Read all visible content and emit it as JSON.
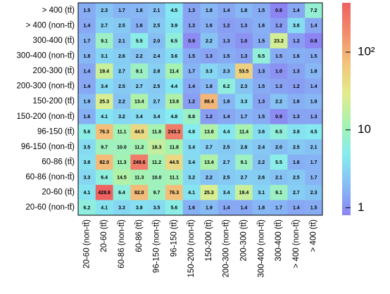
{
  "chart_data": {
    "type": "heatmap",
    "categories": [
      "20-60 (non-tt̄)",
      "20-60 (tt̄)",
      "60-86 (non-tt̄)",
      "60-86 (tt̄)",
      "96-150 (non-tt̄)",
      "96-150 (tt̄)",
      "150-200 (non-tt̄)",
      "150-200 (tt̄)",
      "200-300 (non-tt̄)",
      "200-300 (tt̄)",
      "300-400 (non-tt̄)",
      "300-400 (tt̄)",
      "> 400 (non-tt̄)",
      "> 400 (tt̄)"
    ],
    "y_categories": [
      "> 400 (tt̄)",
      "> 400 (non-tt̄)",
      "300-400 (tt̄)",
      "300-400 (non-tt̄)",
      "200-300 (tt̄)",
      "200-300 (non-tt̄)",
      "150-200 (tt̄)",
      "150-200 (non-tt̄)",
      "96-150 (tt̄)",
      "96-150 (non-tt̄)",
      "60-86 (tt̄)",
      "60-86 (non-tt̄)",
      "20-60 (tt̄)",
      "20-60 (non-tt̄)"
    ],
    "values": [
      [
        1.5,
        2.3,
        1.7,
        1.8,
        2.1,
        4.5,
        1.3,
        1.8,
        1.4,
        1.8,
        1.5,
        0.8,
        1.4,
        7.2
      ],
      [
        1.4,
        2.7,
        2.5,
        1.6,
        2.5,
        3.9,
        1.3,
        1.6,
        1.2,
        1.3,
        1.6,
        1.2,
        3.6,
        1.4
      ],
      [
        1.7,
        9.1,
        2.1,
        5.5,
        2.0,
        6.5,
        0.9,
        2.2,
        1.3,
        1.0,
        1.5,
        23.2,
        1.2,
        0.8
      ],
      [
        1.8,
        3.1,
        2.6,
        2.2,
        2.4,
        3.6,
        1.5,
        1.3,
        1.5,
        1.3,
        6.5,
        1.5,
        1.6,
        1.5
      ],
      [
        1.4,
        19.4,
        2.7,
        9.1,
        2.8,
        11.4,
        1.7,
        3.3,
        2.3,
        53.5,
        1.3,
        1.0,
        1.3,
        1.8
      ],
      [
        1.4,
        3.4,
        2.5,
        2.7,
        2.5,
        4.4,
        1.4,
        1.8,
        6.2,
        2.3,
        1.5,
        1.3,
        1.2,
        1.4
      ],
      [
        1.9,
        25.3,
        2.2,
        13.4,
        2.7,
        13.8,
        1.2,
        88.4,
        1.8,
        3.3,
        1.3,
        2.2,
        1.6,
        1.8
      ],
      [
        1.6,
        4.1,
        3.2,
        3.4,
        3.4,
        4.8,
        8.8,
        1.2,
        1.4,
        1.7,
        1.5,
        0.9,
        1.3,
        1.3
      ],
      [
        5.6,
        76.3,
        11.1,
        44.5,
        11.8,
        243.3,
        4.8,
        13.8,
        4.4,
        11.4,
        3.6,
        6.5,
        3.9,
        4.5
      ],
      [
        3.5,
        9.7,
        10.0,
        11.2,
        18.3,
        11.8,
        3.4,
        2.7,
        2.5,
        2.8,
        2.4,
        2.0,
        2.5,
        2.1
      ],
      [
        3.8,
        82.0,
        11.3,
        249.6,
        11.2,
        44.5,
        3.4,
        13.4,
        2.7,
        9.1,
        2.2,
        5.5,
        1.6,
        1.7
      ],
      [
        3.3,
        6.4,
        14.5,
        11.3,
        10.0,
        11.1,
        3.2,
        2.2,
        2.5,
        2.7,
        2.6,
        2.1,
        2.5,
        1.7
      ],
      [
        4.1,
        428.8,
        6.4,
        82.0,
        9.7,
        76.3,
        4.1,
        25.3,
        3.4,
        19.4,
        3.1,
        9.1,
        2.7,
        2.3
      ],
      [
        6.2,
        4.1,
        3.3,
        3.8,
        3.5,
        5.6,
        1.6,
        1.9,
        1.4,
        1.4,
        1.8,
        1.7,
        1.4,
        1.5
      ]
    ],
    "value_labels": [
      [
        "1.5",
        "2.3",
        "1.7",
        "1.8",
        "2.1",
        "4.5",
        "1.3",
        "1.8",
        "1.4",
        "1.8",
        "1.5",
        "0.8",
        "1.4",
        "7.2"
      ],
      [
        "1.4",
        "2.7",
        "2.5",
        "1.6",
        "2.5",
        "3.9",
        "1.3",
        "1.6",
        "1.2",
        "1.3",
        "1.6",
        "1.2",
        "3.6",
        "1.4"
      ],
      [
        "1.7",
        "9.1",
        "2.1",
        "5.5",
        "2.0",
        "6.5",
        "0.9",
        "2.2",
        "1.3",
        "1.0",
        "1.5",
        "23.2",
        "1.2",
        "0.8"
      ],
      [
        "1.8",
        "3.1",
        "2.6",
        "2.2",
        "2.4",
        "3.6",
        "1.5",
        "1.3",
        "1.5",
        "1.3",
        "6.5",
        "1.5",
        "1.6",
        "1.5"
      ],
      [
        "1.4",
        "19.4",
        "2.7",
        "9.1",
        "2.8",
        "11.4",
        "1.7",
        "3.3",
        "2.3",
        "53.5",
        "1.3",
        "1.0",
        "1.3",
        "1.8"
      ],
      [
        "1.4",
        "3.4",
        "2.5",
        "2.7",
        "2.5",
        "4.4",
        "1.4",
        "1.8",
        "6.2",
        "2.3",
        "1.5",
        "1.3",
        "1.2",
        "1.4"
      ],
      [
        "1.9",
        "25.3",
        "2.2",
        "13.4",
        "2.7",
        "13.8",
        "1.2",
        "88.4",
        "1.8",
        "3.3",
        "1.3",
        "2.2",
        "1.6",
        "1.8"
      ],
      [
        "1.6",
        "4.1",
        "3.2",
        "3.4",
        "3.4",
        "4.8",
        "8.8",
        "1.2",
        "1.4",
        "1.7",
        "1.5",
        "0.9",
        "1.3",
        "1.3"
      ],
      [
        "5.6",
        "76.3",
        "11.1",
        "44.5",
        "11.8",
        "243.3",
        "4.8",
        "13.8",
        "4.4",
        "11.4",
        "3.6",
        "6.5",
        "3.9",
        "4.5"
      ],
      [
        "3.5",
        "9.7",
        "10.0",
        "11.2",
        "18.3",
        "11.8",
        "3.4",
        "2.7",
        "2.5",
        "2.8",
        "2.4",
        "2.0",
        "2.5",
        "2.1"
      ],
      [
        "3.8",
        "82.0",
        "11.3",
        "249.6",
        "11.2",
        "44.5",
        "3.4",
        "13.4",
        "2.7",
        "9.1",
        "2.2",
        "5.5",
        "1.6",
        "1.7"
      ],
      [
        "3.3",
        "6.4",
        "14.5",
        "11.3",
        "10.0",
        "11.1",
        "3.2",
        "2.2",
        "2.5",
        "2.7",
        "2.6",
        "2.1",
        "2.5",
        "1.7"
      ],
      [
        "4.1",
        "428.8",
        "6.4",
        "82.0",
        "9.7",
        "76.3",
        "4.1",
        "25.3",
        "3.4",
        "19.4",
        "3.1",
        "9.1",
        "2.7",
        "2.3"
      ],
      [
        "6.2",
        "4.1",
        "3.3",
        "3.8",
        "3.5",
        "5.6",
        "1.6",
        "1.9",
        "1.4",
        "1.4",
        "1.8",
        "1.7",
        "1.4",
        "1.5"
      ]
    ],
    "zlim": [
      0.8,
      430
    ],
    "zticks": [
      1,
      10,
      {
        "value": 100,
        "label": "10²"
      }
    ],
    "zscale": "log",
    "colormap": [
      "#8c84f2",
      "#86bdf4",
      "#86ecf0",
      "#a6f2b0",
      "#e2ec8c",
      "#f2c47c",
      "#f28c6c",
      "#ee6262"
    ]
  }
}
